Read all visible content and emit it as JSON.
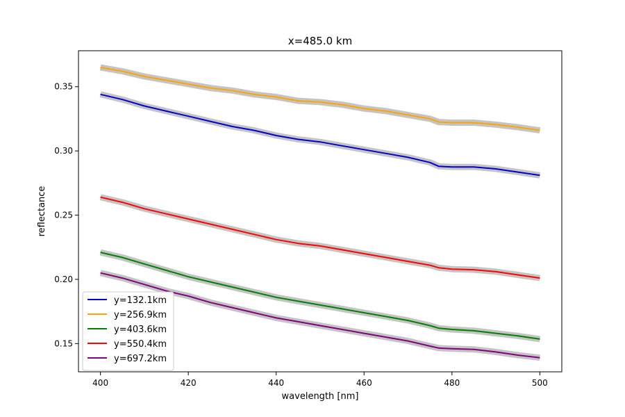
{
  "chart_data": {
    "type": "line",
    "title": "x=485.0 km",
    "xlabel": "wavelength [nm]",
    "ylabel": "reflectance",
    "xlim": [
      395,
      505
    ],
    "ylim": [
      0.128,
      0.378
    ],
    "xticks": [
      400,
      420,
      440,
      460,
      480,
      500
    ],
    "xtick_labels": [
      "400",
      "420",
      "440",
      "460",
      "480",
      "500"
    ],
    "yticks": [
      0.15,
      0.2,
      0.25,
      0.3,
      0.35
    ],
    "ytick_labels": [
      "0.15",
      "0.20",
      "0.25",
      "0.30",
      "0.35"
    ],
    "grid": false,
    "legend_position": "lower-left",
    "band_color": "#c4c4c4",
    "x": [
      400,
      405,
      410,
      415,
      420,
      425,
      430,
      435,
      440,
      445,
      450,
      455,
      460,
      465,
      470,
      475,
      477,
      480,
      485,
      490,
      495,
      500
    ],
    "series": [
      {
        "name": "y=132.1km",
        "color": "#0000cc",
        "values": [
          0.344,
          0.34,
          0.335,
          0.331,
          0.327,
          0.323,
          0.319,
          0.316,
          0.312,
          0.309,
          0.307,
          0.304,
          0.301,
          0.298,
          0.295,
          0.291,
          0.288,
          0.2875,
          0.2875,
          0.286,
          0.2835,
          0.281
        ]
      },
      {
        "name": "y=256.9km",
        "color": "#ffa500",
        "values": [
          0.365,
          0.362,
          0.358,
          0.355,
          0.352,
          0.349,
          0.347,
          0.344,
          0.342,
          0.339,
          0.338,
          0.336,
          0.333,
          0.331,
          0.328,
          0.325,
          0.3225,
          0.322,
          0.322,
          0.3205,
          0.3185,
          0.316
        ]
      },
      {
        "name": "y=403.6km",
        "color": "#008000",
        "values": [
          0.221,
          0.217,
          0.212,
          0.207,
          0.202,
          0.198,
          0.194,
          0.19,
          0.186,
          0.183,
          0.18,
          0.177,
          0.174,
          0.171,
          0.168,
          0.164,
          0.162,
          0.161,
          0.16,
          0.158,
          0.156,
          0.1535
        ]
      },
      {
        "name": "y=550.4km",
        "color": "#ff0000",
        "values": [
          0.264,
          0.26,
          0.255,
          0.251,
          0.247,
          0.243,
          0.239,
          0.235,
          0.231,
          0.228,
          0.226,
          0.223,
          0.22,
          0.217,
          0.214,
          0.211,
          0.209,
          0.208,
          0.2075,
          0.206,
          0.2035,
          0.201
        ]
      },
      {
        "name": "y=697.2km",
        "color": "#800080",
        "values": [
          0.205,
          0.201,
          0.196,
          0.191,
          0.187,
          0.182,
          0.178,
          0.174,
          0.17,
          0.167,
          0.164,
          0.161,
          0.158,
          0.155,
          0.152,
          0.148,
          0.1465,
          0.146,
          0.1455,
          0.1435,
          0.141,
          0.139
        ]
      }
    ]
  }
}
